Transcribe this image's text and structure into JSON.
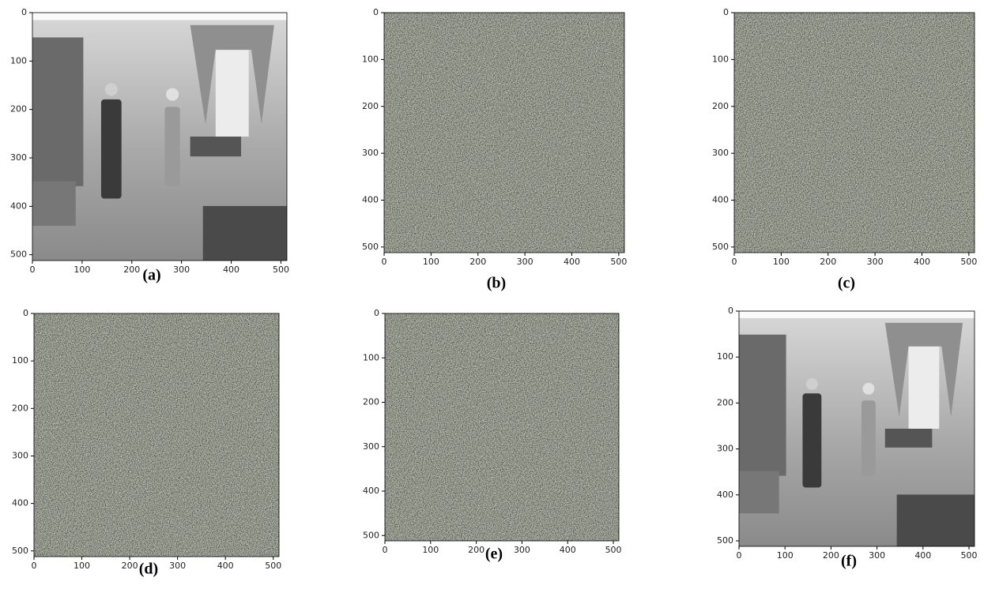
{
  "chart_data": [
    {
      "type": "photo",
      "caption": "(a)",
      "xlim": [
        0,
        512
      ],
      "ylim": [
        0,
        512
      ],
      "xticks": [
        0,
        100,
        200,
        300,
        400,
        500
      ],
      "yticks": [
        0,
        100,
        200,
        300,
        400,
        500
      ]
    },
    {
      "type": "noise",
      "caption": "(b)",
      "xlim": [
        0,
        512
      ],
      "ylim": [
        0,
        512
      ],
      "xticks": [
        0,
        100,
        200,
        300,
        400,
        500
      ],
      "yticks": [
        0,
        100,
        200,
        300,
        400,
        500
      ]
    },
    {
      "type": "noise",
      "caption": "(c)",
      "xlim": [
        0,
        512
      ],
      "ylim": [
        0,
        512
      ],
      "xticks": [
        0,
        100,
        200,
        300,
        400,
        500
      ],
      "yticks": [
        0,
        100,
        200,
        300,
        400,
        500
      ]
    },
    {
      "type": "noise",
      "caption": "(d)",
      "xlim": [
        0,
        512
      ],
      "ylim": [
        0,
        512
      ],
      "xticks": [
        0,
        100,
        200,
        300,
        400,
        500
      ],
      "yticks": [
        0,
        100,
        200,
        300,
        400,
        500
      ]
    },
    {
      "type": "noise",
      "caption": "(e)",
      "xlim": [
        0,
        512
      ],
      "ylim": [
        0,
        512
      ],
      "xticks": [
        0,
        100,
        200,
        300,
        400,
        500
      ],
      "yticks": [
        0,
        100,
        200,
        300,
        400,
        500
      ]
    },
    {
      "type": "photo",
      "caption": "(f)",
      "xlim": [
        0,
        512
      ],
      "ylim": [
        0,
        512
      ],
      "xticks": [
        0,
        100,
        200,
        300,
        400,
        500
      ],
      "yticks": [
        0,
        100,
        200,
        300,
        400,
        500
      ]
    }
  ]
}
